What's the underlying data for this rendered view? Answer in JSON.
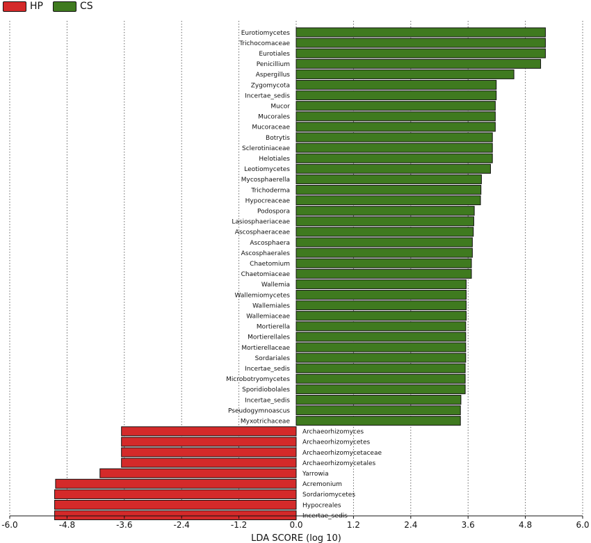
{
  "chart_data": {
    "type": "bar",
    "orientation": "horizontal",
    "xlabel": "LDA SCORE (log 10)",
    "xlim": [
      -6.0,
      6.0
    ],
    "xticks": [
      "-6.0",
      "-4.8",
      "-3.6",
      "-2.4",
      "-1.2",
      "0.0",
      "1.2",
      "2.4",
      "3.6",
      "4.8",
      "6.0"
    ],
    "grid": "vertical dotted",
    "legend_position": "top-left",
    "series": [
      {
        "name": "HP",
        "color": "#d42a2a"
      },
      {
        "name": "CS",
        "color": "#3f7a1f"
      }
    ],
    "bars": [
      {
        "label": "Eurotiomycetes",
        "value": 5.22,
        "group": "CS"
      },
      {
        "label": "Trichocomaceae",
        "value": 5.22,
        "group": "CS"
      },
      {
        "label": "Eurotiales",
        "value": 5.22,
        "group": "CS"
      },
      {
        "label": "Penicillium",
        "value": 5.12,
        "group": "CS"
      },
      {
        "label": "Aspergillus",
        "value": 4.56,
        "group": "CS"
      },
      {
        "label": "Zygomycota",
        "value": 4.19,
        "group": "CS"
      },
      {
        "label": "Incertae_sedis",
        "value": 4.19,
        "group": "CS"
      },
      {
        "label": "Mucor",
        "value": 4.17,
        "group": "CS"
      },
      {
        "label": "Mucorales",
        "value": 4.17,
        "group": "CS"
      },
      {
        "label": "Mucoraceae",
        "value": 4.17,
        "group": "CS"
      },
      {
        "label": "Botrytis",
        "value": 4.11,
        "group": "CS"
      },
      {
        "label": "Sclerotiniaceae",
        "value": 4.11,
        "group": "CS"
      },
      {
        "label": "Helotiales",
        "value": 4.11,
        "group": "CS"
      },
      {
        "label": "Leotiomycetes",
        "value": 4.07,
        "group": "CS"
      },
      {
        "label": "Mycosphaerella",
        "value": 3.88,
        "group": "CS"
      },
      {
        "label": "Trichoderma",
        "value": 3.87,
        "group": "CS"
      },
      {
        "label": "Hypocreaceae",
        "value": 3.86,
        "group": "CS"
      },
      {
        "label": "Podospora",
        "value": 3.73,
        "group": "CS"
      },
      {
        "label": "Lasiosphaeriaceae",
        "value": 3.72,
        "group": "CS"
      },
      {
        "label": "Ascosphaeraceae",
        "value": 3.71,
        "group": "CS"
      },
      {
        "label": "Ascosphaera",
        "value": 3.69,
        "group": "CS"
      },
      {
        "label": "Ascosphaerales",
        "value": 3.69,
        "group": "CS"
      },
      {
        "label": "Chaetomium",
        "value": 3.67,
        "group": "CS"
      },
      {
        "label": "Chaetomiaceae",
        "value": 3.67,
        "group": "CS"
      },
      {
        "label": "Wallemia",
        "value": 3.56,
        "group": "CS"
      },
      {
        "label": "Wallemiomycetes",
        "value": 3.56,
        "group": "CS"
      },
      {
        "label": "Wallemiales",
        "value": 3.56,
        "group": "CS"
      },
      {
        "label": "Wallemiaceae",
        "value": 3.56,
        "group": "CS"
      },
      {
        "label": "Mortierella",
        "value": 3.55,
        "group": "CS"
      },
      {
        "label": "Mortierellales",
        "value": 3.55,
        "group": "CS"
      },
      {
        "label": "Mortierellaceae",
        "value": 3.55,
        "group": "CS"
      },
      {
        "label": "Sordariales",
        "value": 3.55,
        "group": "CS"
      },
      {
        "label": "Incertae_sedis",
        "value": 3.54,
        "group": "CS"
      },
      {
        "label": "Microbotryomycetes",
        "value": 3.54,
        "group": "CS"
      },
      {
        "label": "Sporidiobolales",
        "value": 3.54,
        "group": "CS"
      },
      {
        "label": "Incertae_sedis",
        "value": 3.45,
        "group": "CS"
      },
      {
        "label": "Pseudogymnoascus",
        "value": 3.44,
        "group": "CS"
      },
      {
        "label": "Myxotrichaceae",
        "value": 3.44,
        "group": "CS"
      },
      {
        "label": "Archaeorhizomyces",
        "value": -3.66,
        "group": "HP"
      },
      {
        "label": "Archaeorhizomycetes",
        "value": -3.66,
        "group": "HP"
      },
      {
        "label": "Archaeorhizomycetaceae",
        "value": -3.66,
        "group": "HP"
      },
      {
        "label": "Archaeorhizomycetales",
        "value": -3.66,
        "group": "HP"
      },
      {
        "label": "Yarrowia",
        "value": -4.11,
        "group": "HP"
      },
      {
        "label": "Acremonium",
        "value": -5.04,
        "group": "HP"
      },
      {
        "label": "Sordariomycetes",
        "value": -5.06,
        "group": "HP"
      },
      {
        "label": "Hypocreales",
        "value": -5.06,
        "group": "HP"
      },
      {
        "label": "Incertae_sedis",
        "value": -5.06,
        "group": "HP"
      }
    ]
  }
}
